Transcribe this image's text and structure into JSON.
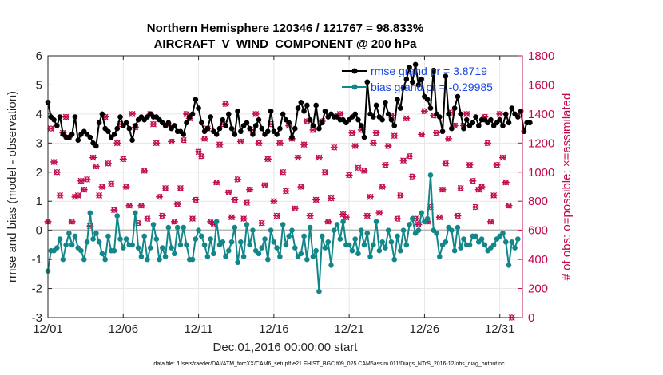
{
  "chart_data": {
    "type": "line",
    "title": "Northern Hemisphere 120346 / 121767 = 98.833%",
    "subtitle": "AIRCRAFT_V_WIND_COMPONENT @ 200 hPa",
    "xlabel": "Dec.01,2016 00:00:00 start",
    "ylabel": "rmse and bias (model - observation)",
    "y2label": "# of obs: o=possible; ×=assimilated",
    "footer": "data file: /Users/raeder/DAI/ATM_forcXX/CAM6_setup/f.e21.FHIST_BGC.f09_025.CAM6assim.011/Diags_NTrS_2016-12/obs_diag_output.nc",
    "xlim_days": [
      0,
      31.5
    ],
    "ylim": [
      -3,
      6
    ],
    "y2lim": [
      0,
      1800
    ],
    "x_ticks": [
      "12/01",
      "12/06",
      "12/11",
      "12/16",
      "12/21",
      "12/26",
      "12/31"
    ],
    "x_tick_days": [
      0,
      5,
      10,
      15,
      20,
      25,
      30
    ],
    "y_ticks": [
      "-3",
      "-2",
      "-1",
      "0",
      "1",
      "2",
      "3",
      "4",
      "5",
      "6"
    ],
    "y2_ticks": [
      "0",
      "200",
      "400",
      "600",
      "800",
      "1000",
      "1200",
      "1400",
      "1600",
      "1800"
    ],
    "legend": [
      {
        "label": "rmse grand pr = 3.8719",
        "color": "#000000"
      },
      {
        "label": "bias grand pr = -0.29985",
        "color": "#12878a"
      }
    ],
    "colors": {
      "rmse": "#000000",
      "bias": "#12878a",
      "obs": "#c0094f",
      "zero_line": "#b3b3b3"
    },
    "series": [
      {
        "name": "rmse",
        "axis": "left",
        "values": [
          4.4,
          3.9,
          3.8,
          3.6,
          3.9,
          3.3,
          3.2,
          3.2,
          3.3,
          3.9,
          3.1,
          3.3,
          3.4,
          3.3,
          3.2,
          3.0,
          2.9,
          3.7,
          4.0,
          3.5,
          3.4,
          3.2,
          3.3,
          3.5,
          3.9,
          3.6,
          3.7,
          3.5,
          3.1,
          3.6,
          3.8,
          3.9,
          3.8,
          3.9,
          4.0,
          3.9,
          3.9,
          3.8,
          3.7,
          3.6,
          3.7,
          3.5,
          3.6,
          3.4,
          3.4,
          3.3,
          3.7,
          3.9,
          4.0,
          4.5,
          4.2,
          3.7,
          3.4,
          3.5,
          3.9,
          3.4,
          3.3,
          3.5,
          3.8,
          3.6,
          4.0,
          3.5,
          3.3,
          4.1,
          3.4,
          3.6,
          3.7,
          3.5,
          3.3,
          3.6,
          3.8,
          3.5,
          3.3,
          3.4,
          4.1,
          3.4,
          3.3,
          3.5,
          4.0,
          3.8,
          3.7,
          3.2,
          3.5,
          4.2,
          4.4,
          4.1,
          4.3,
          3.8,
          3.6,
          4.3,
          3.5,
          3.7,
          4.1,
          3.9,
          4.0,
          3.9,
          3.9,
          3.8,
          3.8,
          3.7,
          3.8,
          3.9,
          4.0,
          3.8,
          3.6,
          3.2,
          5.1,
          4.0,
          3.9,
          4.3,
          3.9,
          3.8,
          4.4,
          4.0,
          3.8,
          3.6,
          4.5,
          4.2,
          4.9,
          5.2,
          5.6,
          5.1,
          5.7,
          5.0,
          5.2,
          4.6,
          4.5,
          4.2,
          5.5,
          4.0,
          3.9,
          3.4,
          5.3,
          4.0,
          3.5,
          4.2,
          4.6,
          4.0,
          3.5,
          3.8,
          3.6,
          3.7,
          3.9,
          3.6,
          3.8,
          3.8,
          3.7,
          3.8,
          3.6,
          3.7,
          3.8,
          3.6,
          4.0,
          3.7,
          4.2,
          4.0,
          3.9,
          4.1,
          3.4,
          3.7,
          3.7
        ],
        "x_start_day": 0,
        "x_step_day": 0.2
      },
      {
        "name": "bias",
        "axis": "left",
        "values": [
          -1.4,
          -0.7,
          -0.7,
          -0.6,
          -0.3,
          -1.0,
          -0.5,
          -0.1,
          -0.5,
          -0.2,
          -0.6,
          -0.7,
          -1.0,
          -0.4,
          0.6,
          -0.3,
          -0.1,
          -0.4,
          -0.8,
          -1.0,
          -0.2,
          -0.7,
          -0.7,
          0.5,
          -0.3,
          -0.6,
          -0.3,
          -0.5,
          -0.5,
          0.6,
          -0.6,
          -0.9,
          -0.2,
          -1.0,
          -0.6,
          0.2,
          -0.3,
          -1.0,
          -0.6,
          -0.9,
          0.1,
          -0.6,
          -0.8,
          0.1,
          -0.5,
          0.1,
          -0.5,
          -1.0,
          -1.0,
          -0.3,
          0.0,
          -0.2,
          -0.5,
          -0.9,
          -0.3,
          -0.8,
          0.3,
          -0.5,
          -0.4,
          -0.9,
          -0.7,
          -0.4,
          0.1,
          -1.1,
          -0.4,
          -0.9,
          0.2,
          -0.5,
          0.0,
          -0.7,
          -0.8,
          -0.6,
          -0.3,
          -1.0,
          0.0,
          -0.4,
          -0.6,
          -0.9,
          0.2,
          -0.5,
          -0.2,
          0.0,
          -0.6,
          -0.9,
          -0.8,
          -0.2,
          -1.0,
          0.1,
          -0.9,
          -0.7,
          -2.1,
          -0.2,
          -0.6,
          -0.4,
          -1.2,
          0.0,
          0.2,
          -0.3,
          0.3,
          -0.5,
          -0.5,
          -0.7,
          -0.3,
          -0.8,
          0.0,
          -0.5,
          -0.1,
          -0.9,
          -0.5,
          0.3,
          -0.7,
          -0.4,
          -0.6,
          0.0,
          -0.4,
          -1.0,
          -0.2,
          -0.7,
          0.0,
          -0.5,
          0.2,
          0.4,
          -0.1,
          0.0,
          0.6,
          0.3,
          0.4,
          1.9,
          0.0,
          -0.1,
          -0.9,
          -0.5,
          -0.4,
          0.1,
          0.0,
          -0.7,
          0.1,
          -0.6,
          -0.3,
          -0.5,
          -0.5,
          -0.2,
          -0.2,
          -0.4,
          -0.3,
          -0.5,
          -0.7,
          -0.6,
          -0.5,
          -0.3,
          -0.2,
          -0.1,
          -0.4,
          -1.2,
          -0.4,
          -0.6,
          -0.3
        ],
        "x_start_day": 0,
        "x_step_day": 0.2
      },
      {
        "name": "obs_count",
        "axis": "right",
        "marker": "o and x",
        "values": [
          660,
          1300,
          1070,
          1000,
          840,
          1270,
          1380,
          1240,
          660,
          830,
          840,
          940,
          880,
          950,
          630,
          1100,
          1040,
          840,
          900,
          1380,
          1060,
          920,
          740,
          1200,
          1330,
          1090,
          900,
          770,
          1400,
          1310,
          650,
          770,
          1010,
          680,
          1400,
          1330,
          1200,
          830,
          700,
          890,
          1320,
          1210,
          660,
          780,
          890,
          1220,
          1400,
          1370,
          680,
          810,
          1140,
          1110,
          1230,
          1300,
          660,
          640,
          930,
          1190,
          1330,
          1470,
          860,
          690,
          810,
          950,
          1210,
          680,
          790,
          880,
          1290,
          1400,
          1200,
          650,
          910,
          1090,
          1330,
          800,
          700,
          1200,
          1000,
          870,
          1320,
          1230,
          750,
          1100,
          900,
          1190,
          1350,
          700,
          1290,
          810,
          1100,
          1350,
          1000,
          660,
          820,
          1170,
          1390,
          1400,
          710,
          690,
          980,
          1270,
          1180,
          1030,
          1290,
          1010,
          700,
          830,
          1200,
          1270,
          720,
          900,
          1050,
          1180,
          1390,
          1250,
          680,
          840,
          1080,
          1370,
          1110,
          970,
          680,
          640,
          1260,
          1420,
          660,
          760,
          1390,
          1270,
          690,
          880,
          1060,
          1230,
          1410,
          1320,
          700,
          890,
          1320,
          1400,
          1050,
          940,
          760,
          880,
          900,
          1380,
          1200,
          660,
          840,
          1050,
          1400,
          1100,
          930,
          770,
          0
        ],
        "x_start_day": 0,
        "x_step_day": 0.2
      }
    ]
  }
}
